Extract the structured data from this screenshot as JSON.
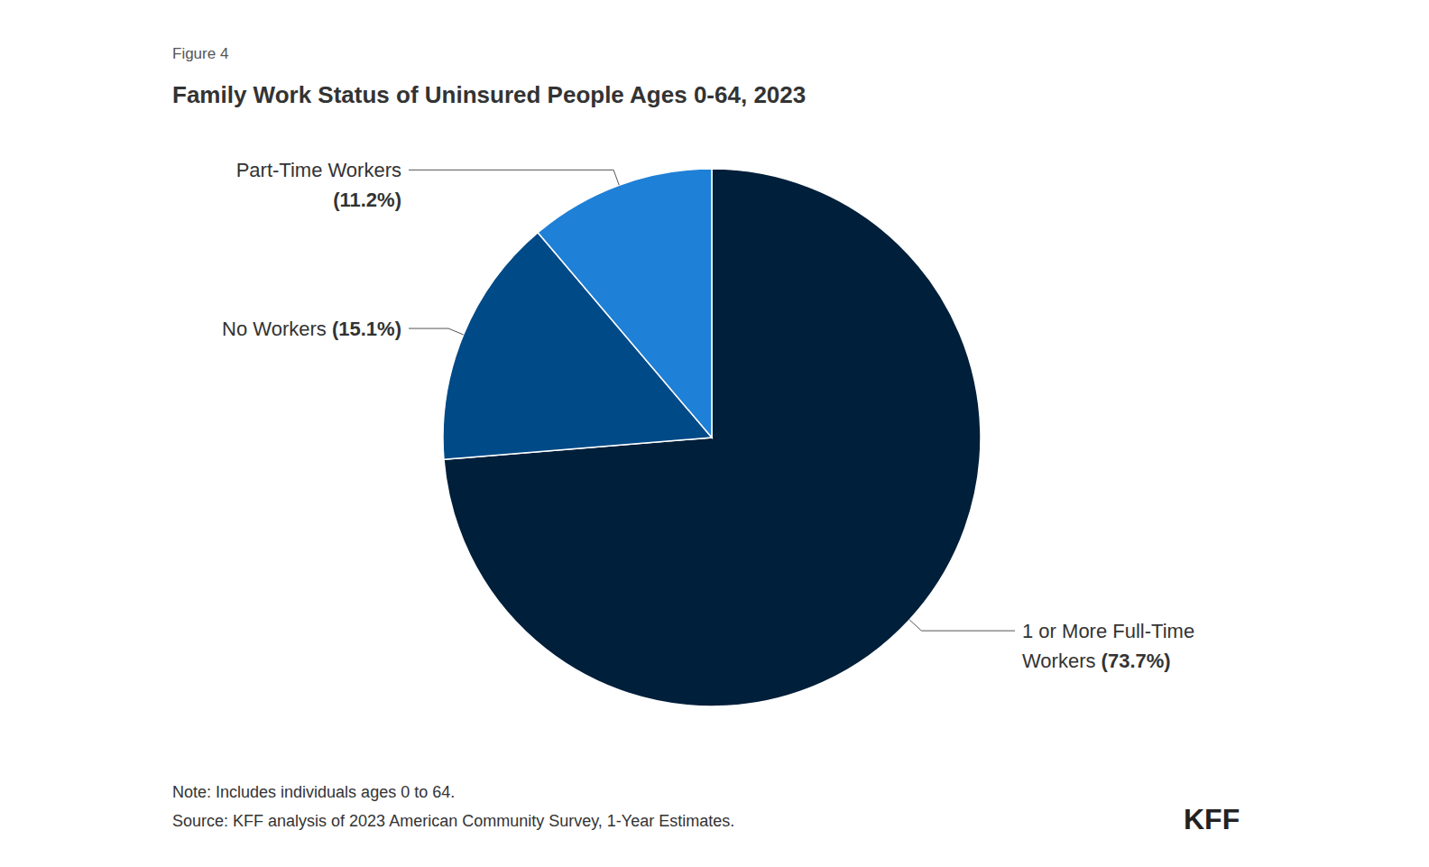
{
  "chart_data": {
    "type": "pie",
    "figure_label": "Figure 4",
    "title": "Family Work Status of Uninsured People Ages 0-64, 2023",
    "categories": [
      "1 or More Full-Time Workers",
      "No Workers",
      "Part-Time Workers"
    ],
    "values": [
      73.7,
      15.1,
      11.2
    ],
    "value_labels": [
      "(73.7%)",
      "(15.1%)",
      "(11.2%)"
    ],
    "colors": [
      "#001f3a",
      "#004a87",
      "#1e80d6"
    ],
    "data_labels": true,
    "legend": false,
    "note": "Note: Includes individuals ages 0 to 64.",
    "source": "Source: KFF analysis of 2023 American Community Survey, 1-Year Estimates.",
    "logo": "KFF"
  }
}
